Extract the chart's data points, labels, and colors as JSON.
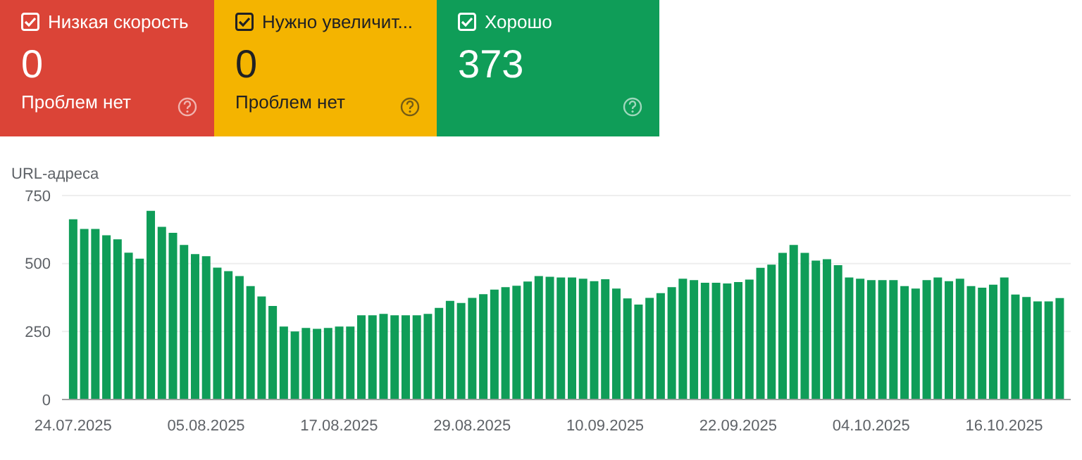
{
  "chart_data": {
    "type": "bar",
    "stacked": true,
    "ylabel": "URL-адреса",
    "legend": "top left",
    "grid": "y",
    "x": [
      "2025-07-24",
      "2025-07-25",
      "2025-07-26",
      "2025-07-27",
      "2025-07-28",
      "2025-07-29",
      "2025-07-30",
      "2025-07-31",
      "2025-08-01",
      "2025-08-02",
      "2025-08-03",
      "2025-08-04",
      "2025-08-05",
      "2025-08-06",
      "2025-08-07",
      "2025-08-08",
      "2025-08-09",
      "2025-08-10",
      "2025-08-11",
      "2025-08-12",
      "2025-08-13",
      "2025-08-14",
      "2025-08-15",
      "2025-08-16",
      "2025-08-17",
      "2025-08-18",
      "2025-08-19",
      "2025-08-20",
      "2025-08-21",
      "2025-08-22",
      "2025-08-23",
      "2025-08-24",
      "2025-08-25",
      "2025-08-26",
      "2025-08-27",
      "2025-08-28",
      "2025-08-29",
      "2025-08-30",
      "2025-08-31",
      "2025-09-01",
      "2025-09-02",
      "2025-09-03",
      "2025-09-04",
      "2025-09-05",
      "2025-09-06",
      "2025-09-07",
      "2025-09-08",
      "2025-09-09",
      "2025-09-10",
      "2025-09-11",
      "2025-09-12",
      "2025-09-13",
      "2025-09-14",
      "2025-09-15",
      "2025-09-16",
      "2025-09-17",
      "2025-09-18",
      "2025-09-19",
      "2025-09-20",
      "2025-09-21",
      "2025-09-22",
      "2025-09-23",
      "2025-09-24",
      "2025-09-25",
      "2025-09-26",
      "2025-09-27",
      "2025-09-28",
      "2025-09-29",
      "2025-09-30",
      "2025-10-01",
      "2025-10-02",
      "2025-10-03",
      "2025-10-04",
      "2025-10-05",
      "2025-10-06",
      "2025-10-07",
      "2025-10-08",
      "2025-10-09",
      "2025-10-10",
      "2025-10-11",
      "2025-10-12",
      "2025-10-13",
      "2025-10-14",
      "2025-10-15",
      "2025-10-16",
      "2025-10-17",
      "2025-10-18",
      "2025-10-19",
      "2025-10-20",
      "2025-10-21"
    ],
    "xlim": [
      "2025-07-23",
      "2025-10-22"
    ],
    "xticks": [
      {
        "value": "2025-07-24",
        "label": "24.07.2025"
      },
      {
        "value": "2025-08-05",
        "label": "05.08.2025"
      },
      {
        "value": "2025-08-17",
        "label": "17.08.2025"
      },
      {
        "value": "2025-08-29",
        "label": "29.08.2025"
      },
      {
        "value": "2025-09-10",
        "label": "10.09.2025"
      },
      {
        "value": "2025-09-22",
        "label": "22.09.2025"
      },
      {
        "value": "2025-10-04",
        "label": "04.10.2025"
      },
      {
        "value": "2025-10-16",
        "label": "16.10.2025"
      }
    ],
    "ylim": [
      0,
      750
    ],
    "yticks": [
      0,
      250,
      500,
      750
    ],
    "series": [
      {
        "name": "Низкая скорость",
        "color": "#db4437",
        "values": [
          0,
          0,
          0,
          0,
          0,
          0,
          0,
          0,
          0,
          0,
          0,
          0,
          0,
          0,
          0,
          0,
          0,
          0,
          0,
          0,
          0,
          0,
          0,
          0,
          0,
          0,
          0,
          0,
          0,
          0,
          0,
          0,
          0,
          0,
          0,
          0,
          0,
          0,
          0,
          0,
          0,
          0,
          0,
          0,
          0,
          0,
          0,
          0,
          0,
          0,
          0,
          0,
          0,
          0,
          0,
          0,
          0,
          0,
          0,
          0,
          0,
          0,
          0,
          0,
          0,
          0,
          0,
          0,
          0,
          0,
          0,
          0,
          0,
          0,
          0,
          0,
          0,
          0,
          0,
          0,
          0,
          0,
          0,
          0,
          0,
          0,
          0,
          0,
          0,
          0
        ]
      },
      {
        "name": "Нужно увеличит...",
        "color": "#f4b400",
        "values": [
          0,
          0,
          0,
          0,
          0,
          0,
          0,
          0,
          0,
          0,
          0,
          0,
          0,
          0,
          0,
          0,
          0,
          0,
          0,
          0,
          0,
          0,
          0,
          0,
          0,
          0,
          0,
          0,
          0,
          0,
          0,
          0,
          0,
          0,
          0,
          0,
          0,
          0,
          0,
          0,
          0,
          0,
          0,
          0,
          0,
          0,
          0,
          0,
          0,
          0,
          0,
          0,
          0,
          0,
          0,
          0,
          0,
          0,
          0,
          0,
          0,
          0,
          0,
          0,
          0,
          0,
          0,
          0,
          0,
          0,
          0,
          0,
          0,
          0,
          0,
          0,
          0,
          0,
          0,
          0,
          0,
          0,
          0,
          0,
          0,
          0,
          0,
          0,
          0,
          0
        ]
      },
      {
        "name": "Хорошо",
        "color": "#0f9d58",
        "values": [
          663,
          627,
          627,
          604,
          589,
          540,
          518,
          694,
          635,
          613,
          568,
          535,
          527,
          485,
          472,
          454,
          417,
          379,
          344,
          268,
          250,
          263,
          260,
          263,
          268,
          268,
          310,
          310,
          315,
          310,
          310,
          310,
          315,
          337,
          363,
          355,
          374,
          387,
          404,
          413,
          418,
          434,
          454,
          451,
          449,
          449,
          444,
          435,
          442,
          408,
          372,
          349,
          374,
          391,
          413,
          444,
          439,
          429,
          429,
          427,
          432,
          441,
          484,
          496,
          539,
          568,
          539,
          511,
          516,
          494,
          449,
          444,
          439,
          439,
          439,
          417,
          408,
          439,
          449,
          435,
          444,
          417,
          411,
          422,
          449,
          386,
          377,
          361,
          361,
          373
        ]
      }
    ],
    "annotations": [
      "0",
      "0",
      "373",
      "Проблем нет",
      "Проблем нет"
    ]
  }
}
